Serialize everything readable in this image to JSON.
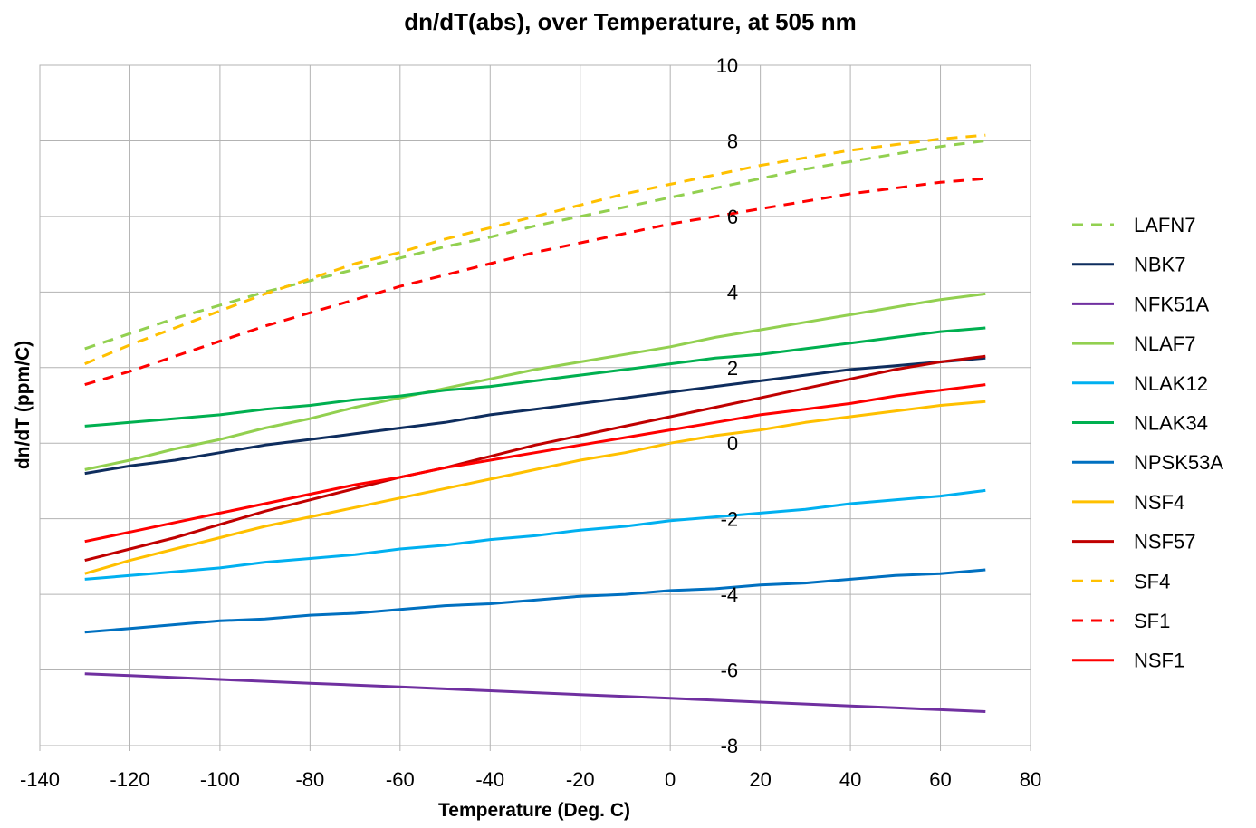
{
  "chart_data": {
    "type": "line",
    "title": "dn/dT(abs), over Temperature, at 505 nm",
    "xlabel": "Temperature (Deg. C)",
    "ylabel": "dn/dT (ppm/C)",
    "xlim": [
      -140,
      80
    ],
    "ylim": [
      -8,
      10
    ],
    "xticks": [
      -140,
      -120,
      -100,
      -80,
      -60,
      -40,
      -20,
      0,
      20,
      40,
      60,
      80
    ],
    "yticks": [
      -8,
      -6,
      -4,
      -2,
      0,
      2,
      4,
      6,
      8,
      10
    ],
    "x_tick_labels": [
      "-140",
      "-120",
      "-100",
      "-80",
      "-60",
      "-40",
      "-20",
      "0",
      "20",
      "40",
      "60",
      "80"
    ],
    "y_tick_labels": [
      "-8",
      "-6",
      "-4",
      "-2",
      "0",
      "2",
      "4",
      "6",
      "8",
      "10"
    ],
    "grid": true,
    "legend_position": "right",
    "x": [
      -130,
      -120,
      -110,
      -100,
      -90,
      -80,
      -70,
      -60,
      -50,
      -40,
      -30,
      -20,
      -10,
      0,
      10,
      20,
      30,
      40,
      50,
      60,
      70
    ],
    "series": [
      {
        "name": "LAFN7",
        "color": "#92d050",
        "dashed": true,
        "values": [
          2.5,
          2.9,
          3.3,
          3.65,
          4.0,
          4.3,
          4.6,
          4.9,
          5.2,
          5.45,
          5.75,
          6.0,
          6.25,
          6.5,
          6.75,
          7.0,
          7.25,
          7.45,
          7.65,
          7.85,
          8.0
        ]
      },
      {
        "name": "NBK7",
        "color": "#0e2d5e",
        "dashed": false,
        "values": [
          -0.8,
          -0.6,
          -0.45,
          -0.25,
          -0.05,
          0.1,
          0.25,
          0.4,
          0.55,
          0.75,
          0.9,
          1.05,
          1.2,
          1.35,
          1.5,
          1.65,
          1.8,
          1.95,
          2.05,
          2.15,
          2.25
        ]
      },
      {
        "name": "NFK51A",
        "color": "#7030a0",
        "dashed": false,
        "values": [
          -6.1,
          -6.15,
          -6.2,
          -6.25,
          -6.3,
          -6.35,
          -6.4,
          -6.45,
          -6.5,
          -6.55,
          -6.6,
          -6.65,
          -6.7,
          -6.75,
          -6.8,
          -6.85,
          -6.9,
          -6.95,
          -7.0,
          -7.05,
          -7.1
        ]
      },
      {
        "name": "NLAF7",
        "color": "#92d050",
        "dashed": false,
        "values": [
          -0.7,
          -0.45,
          -0.15,
          0.1,
          0.4,
          0.65,
          0.95,
          1.2,
          1.45,
          1.7,
          1.95,
          2.15,
          2.35,
          2.55,
          2.8,
          3.0,
          3.2,
          3.4,
          3.6,
          3.8,
          3.95
        ]
      },
      {
        "name": "NLAK12",
        "color": "#00b0f0",
        "dashed": false,
        "values": [
          -3.6,
          -3.5,
          -3.4,
          -3.3,
          -3.15,
          -3.05,
          -2.95,
          -2.8,
          -2.7,
          -2.55,
          -2.45,
          -2.3,
          -2.2,
          -2.05,
          -1.95,
          -1.85,
          -1.75,
          -1.6,
          -1.5,
          -1.4,
          -1.25
        ]
      },
      {
        "name": "NLAK34",
        "color": "#00b050",
        "dashed": false,
        "values": [
          0.45,
          0.55,
          0.65,
          0.75,
          0.9,
          1.0,
          1.15,
          1.25,
          1.4,
          1.5,
          1.65,
          1.8,
          1.95,
          2.1,
          2.25,
          2.35,
          2.5,
          2.65,
          2.8,
          2.95,
          3.05
        ]
      },
      {
        "name": "NPSK53A",
        "color": "#0070c0",
        "dashed": false,
        "values": [
          -5.0,
          -4.9,
          -4.8,
          -4.7,
          -4.65,
          -4.55,
          -4.5,
          -4.4,
          -4.3,
          -4.25,
          -4.15,
          -4.05,
          -4.0,
          -3.9,
          -3.85,
          -3.75,
          -3.7,
          -3.6,
          -3.5,
          -3.45,
          -3.35
        ]
      },
      {
        "name": "NSF4",
        "color": "#ffc000",
        "dashed": false,
        "values": [
          -3.45,
          -3.1,
          -2.8,
          -2.5,
          -2.2,
          -1.95,
          -1.7,
          -1.45,
          -1.2,
          -0.95,
          -0.7,
          -0.45,
          -0.25,
          0.0,
          0.2,
          0.35,
          0.55,
          0.7,
          0.85,
          1.0,
          1.1
        ]
      },
      {
        "name": "NSF57",
        "color": "#c00000",
        "dashed": false,
        "values": [
          -3.1,
          -2.8,
          -2.5,
          -2.15,
          -1.8,
          -1.5,
          -1.2,
          -0.9,
          -0.65,
          -0.35,
          -0.05,
          0.2,
          0.45,
          0.7,
          0.95,
          1.2,
          1.45,
          1.7,
          1.95,
          2.15,
          2.3
        ]
      },
      {
        "name": "SF4",
        "color": "#ffc000",
        "dashed": true,
        "values": [
          2.1,
          2.6,
          3.05,
          3.5,
          3.95,
          4.35,
          4.75,
          5.05,
          5.4,
          5.7,
          6.0,
          6.3,
          6.6,
          6.85,
          7.1,
          7.35,
          7.55,
          7.75,
          7.9,
          8.05,
          8.15
        ]
      },
      {
        "name": "SF1",
        "color": "#ff0000",
        "dashed": true,
        "values": [
          1.55,
          1.9,
          2.3,
          2.7,
          3.1,
          3.45,
          3.8,
          4.15,
          4.45,
          4.75,
          5.05,
          5.3,
          5.55,
          5.8,
          6.0,
          6.2,
          6.4,
          6.6,
          6.75,
          6.9,
          7.0
        ]
      },
      {
        "name": "NSF1",
        "color": "#ff0000",
        "dashed": false,
        "values": [
          -2.6,
          -2.35,
          -2.1,
          -1.85,
          -1.6,
          -1.35,
          -1.1,
          -0.9,
          -0.65,
          -0.45,
          -0.25,
          -0.05,
          0.15,
          0.35,
          0.55,
          0.75,
          0.9,
          1.05,
          1.25,
          1.4,
          1.55
        ]
      }
    ]
  }
}
